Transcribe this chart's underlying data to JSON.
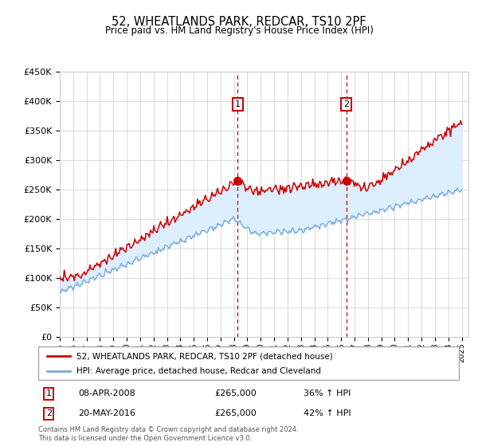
{
  "title": "52, WHEATLANDS PARK, REDCAR, TS10 2PF",
  "subtitle": "Price paid vs. HM Land Registry's House Price Index (HPI)",
  "ylim": [
    0,
    450000
  ],
  "yticks": [
    0,
    50000,
    100000,
    150000,
    200000,
    250000,
    300000,
    350000,
    400000,
    450000
  ],
  "xlim_start": 1995.0,
  "xlim_end": 2025.5,
  "sale1_x": 2008.27,
  "sale1_y": 265000,
  "sale2_x": 2016.38,
  "sale2_y": 265000,
  "sale1_label": "08-APR-2008",
  "sale1_price": "£265,000",
  "sale1_hpi": "36% ↑ HPI",
  "sale2_label": "20-MAY-2016",
  "sale2_price": "£265,000",
  "sale2_hpi": "42% ↑ HPI",
  "legend_line1": "52, WHEATLANDS PARK, REDCAR, TS10 2PF (detached house)",
  "legend_line2": "HPI: Average price, detached house, Redcar and Cleveland",
  "footer": "Contains HM Land Registry data © Crown copyright and database right 2024.\nThis data is licensed under the Open Government Licence v3.0.",
  "line_color_red": "#cc0000",
  "line_color_blue": "#7aaadd",
  "shaded_color": "#ddeeff",
  "grid_color": "#cccccc",
  "background_color": "#ffffff"
}
